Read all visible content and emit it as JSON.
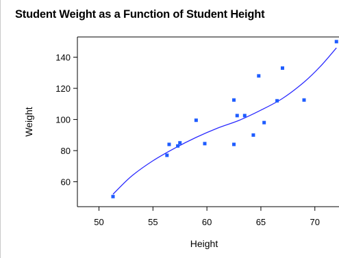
{
  "chart_data": {
    "type": "scatter",
    "title": "Student Weight as a Function of Student Height",
    "xlabel": "Height",
    "ylabel": "Weight",
    "xlim": [
      48,
      72.3
    ],
    "ylim": [
      44,
      153
    ],
    "xticks": [
      50,
      55,
      60,
      65,
      70
    ],
    "yticks": [
      60,
      80,
      100,
      120,
      140
    ],
    "grid": false,
    "legend": "none",
    "colors": {
      "marker": "#1e5cff",
      "fit": "#2a2aff",
      "frame": "#000000"
    },
    "points": [
      {
        "x": 51.3,
        "y": 50.5
      },
      {
        "x": 56.3,
        "y": 77.0
      },
      {
        "x": 56.5,
        "y": 84.0
      },
      {
        "x": 57.3,
        "y": 83.0
      },
      {
        "x": 57.5,
        "y": 85.0
      },
      {
        "x": 59.0,
        "y": 99.5
      },
      {
        "x": 59.8,
        "y": 84.5
      },
      {
        "x": 62.5,
        "y": 84.0
      },
      {
        "x": 62.5,
        "y": 112.5
      },
      {
        "x": 62.8,
        "y": 102.5
      },
      {
        "x": 63.5,
        "y": 102.5
      },
      {
        "x": 64.3,
        "y": 90.0
      },
      {
        "x": 64.8,
        "y": 128.0
      },
      {
        "x": 65.3,
        "y": 98.0
      },
      {
        "x": 66.5,
        "y": 112.0
      },
      {
        "x": 67.0,
        "y": 133.0
      },
      {
        "x": 69.0,
        "y": 112.5
      },
      {
        "x": 72.0,
        "y": 150.0
      }
    ],
    "fit": {
      "type": "cubic",
      "x": [
        51.3,
        53.0,
        55.0,
        57.0,
        59.0,
        61.0,
        63.0,
        65.0,
        67.0,
        69.0,
        70.5,
        72.0
      ],
      "y": [
        52.0,
        63.5,
        73.5,
        81.5,
        88.5,
        94.5,
        99.5,
        106.0,
        113.5,
        124.0,
        134.0,
        146.0
      ]
    }
  }
}
